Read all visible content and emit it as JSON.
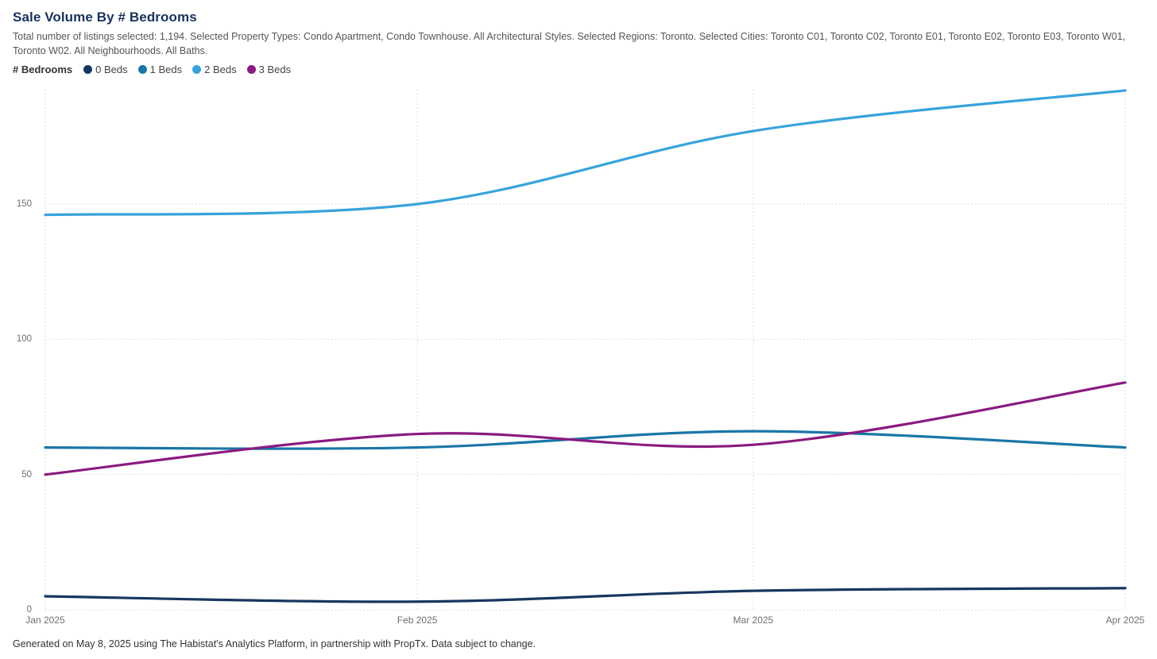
{
  "header": {
    "title": "Sale Volume By # Bedrooms",
    "subtitle": "Total number of listings selected: 1,194. Selected Property Types: Condo Apartment, Condo Townhouse. All Architectural Styles. Selected Regions: Toronto. Selected Cities: Toronto C01, Toronto C02, Toronto E01, Toronto E02, Toronto E03, Toronto W01, Toronto W02. All Neighbourhoods. All Baths."
  },
  "legend": {
    "title": "# Bedrooms",
    "items": [
      {
        "label": "0 Beds",
        "color": "#17375e"
      },
      {
        "label": "1 Beds",
        "color": "#1b76a6"
      },
      {
        "label": "2 Beds",
        "color": "#38a3da"
      },
      {
        "label": "3 Beds",
        "color": "#8a1b80"
      }
    ]
  },
  "chart_data": {
    "type": "line",
    "title": "Sale Volume By # Bedrooms",
    "x": [
      "Jan 2025",
      "Feb 2025",
      "Mar 2025",
      "Apr 2025"
    ],
    "x_day_offsets": [
      0,
      31,
      59,
      90
    ],
    "series": [
      {
        "name": "0 Beds",
        "color": "#17375e",
        "values": [
          5,
          3,
          7,
          8
        ]
      },
      {
        "name": "1 Beds",
        "color": "#1b76a6",
        "values": [
          60,
          60,
          66,
          60
        ]
      },
      {
        "name": "2 Beds",
        "color": "#38a3da",
        "values": [
          146,
          150,
          177,
          192
        ]
      },
      {
        "name": "3 Beds",
        "color": "#8a1b80",
        "values": [
          50,
          65,
          61,
          84
        ]
      }
    ],
    "y_ticks": [
      0,
      50,
      100,
      150
    ],
    "ylim": [
      0,
      192
    ],
    "grid": "dotted",
    "gridline_color": "#d6d6d6",
    "legend_position": "top-left",
    "smooth": true
  },
  "footer": {
    "text": "Generated on May 8, 2025 using The Habistat's Analytics Platform, in partnership with PropTx. Data subject to change."
  }
}
